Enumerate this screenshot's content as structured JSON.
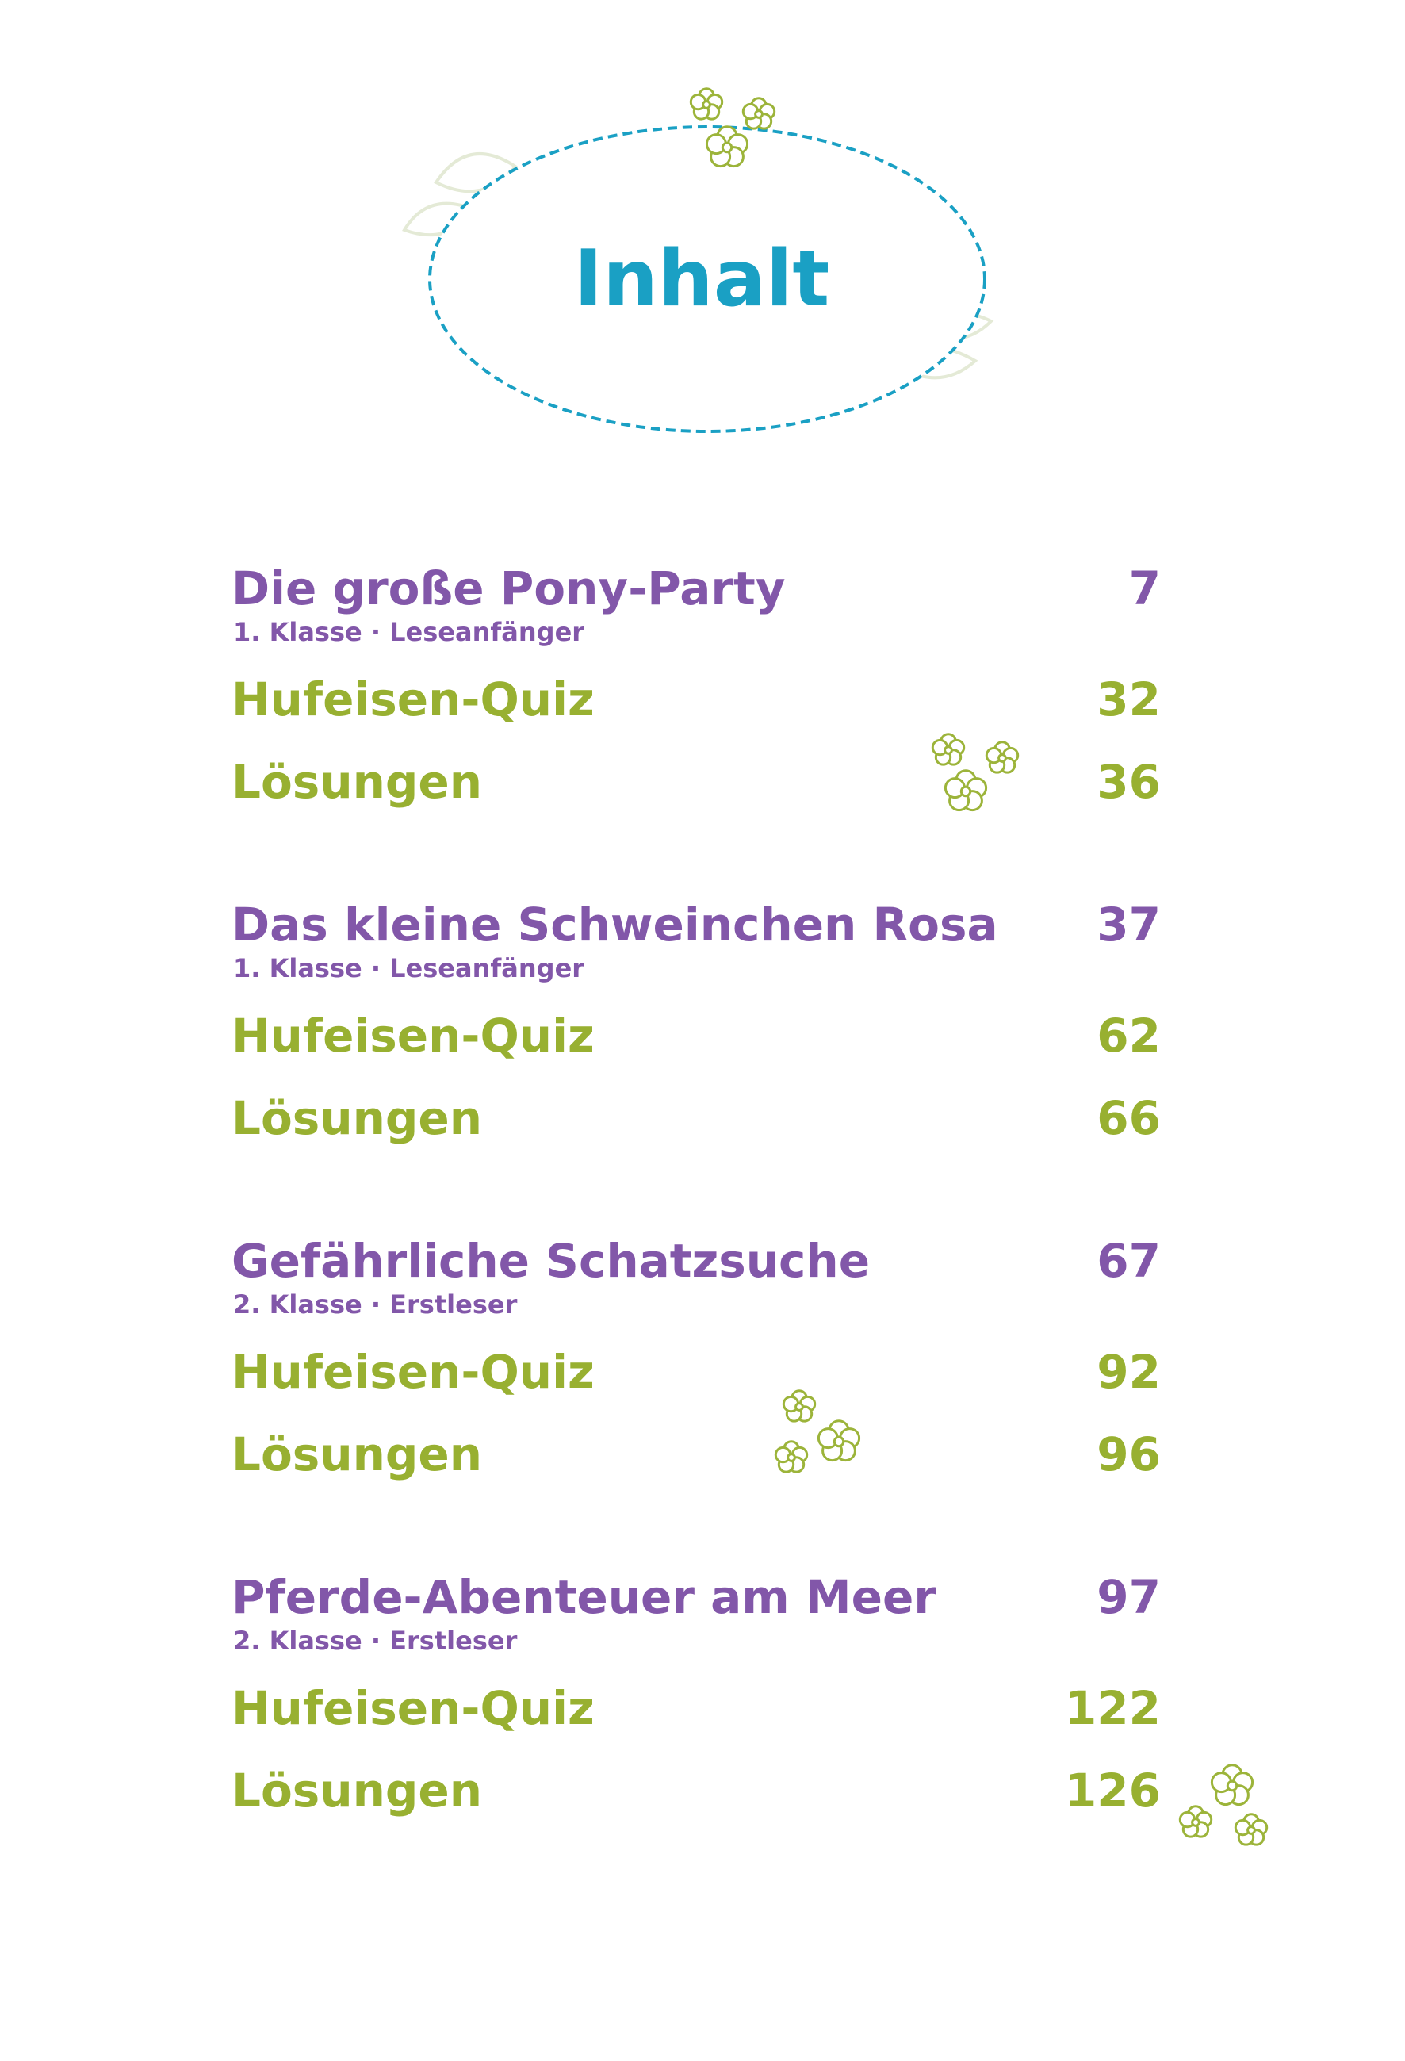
{
  "heading": {
    "title": "Inhalt"
  },
  "colors": {
    "title": "#1aa0c4",
    "story": "#8257a9",
    "sub": "#98b031",
    "frame_dash": "#1aa0c4",
    "flower": "#9cb43a"
  },
  "decorations": {
    "title_flowers_icon": "flower-icon",
    "section_flowers_icon": "flower-icon"
  },
  "toc": {
    "sections": [
      {
        "title": "Die große Pony-Party",
        "page": "7",
        "subtitle": "1. Klasse · Leseanfänger",
        "quiz_label": "Hufeisen-Quiz",
        "quiz_page": "32",
        "solutions_label": "Lösungen",
        "solutions_page": "36"
      },
      {
        "title": "Das kleine Schweinchen Rosa",
        "page": "37",
        "subtitle": "1. Klasse · Leseanfänger",
        "quiz_label": "Hufeisen-Quiz",
        "quiz_page": "62",
        "solutions_label": "Lösungen",
        "solutions_page": "66"
      },
      {
        "title": "Gefährliche Schatzsuche",
        "page": "67",
        "subtitle": "2. Klasse · Erstleser",
        "quiz_label": "Hufeisen-Quiz",
        "quiz_page": "92",
        "solutions_label": "Lösungen",
        "solutions_page": "96"
      },
      {
        "title": "Pferde-Abenteuer am Meer",
        "page": "97",
        "subtitle": "2. Klasse · Erstleser",
        "quiz_label": "Hufeisen-Quiz",
        "quiz_page": "122",
        "solutions_label": "Lösungen",
        "solutions_page": "126"
      }
    ]
  }
}
